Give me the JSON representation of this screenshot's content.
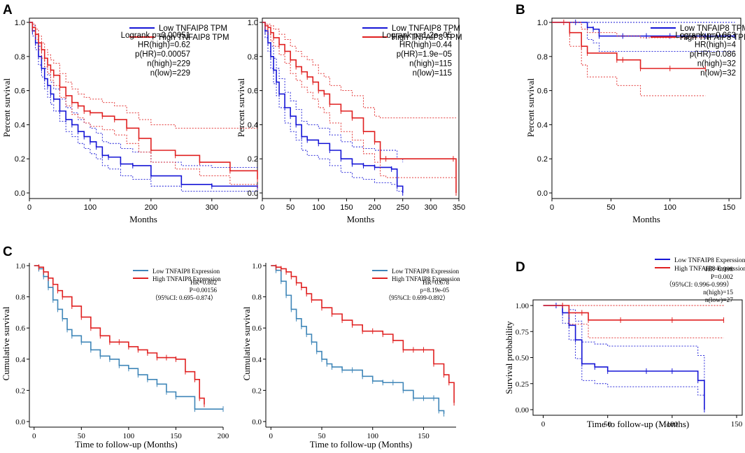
{
  "chart_data": [
    {
      "id": "A1",
      "panel_letter": "A",
      "type": "line",
      "style": "gepia",
      "xlabel": "Months",
      "ylabel": "Percent survival",
      "xlim": [
        0,
        375
      ],
      "ylim": [
        0,
        1.0
      ],
      "xticks": [
        0,
        100,
        200,
        300
      ],
      "yticks": [
        0.0,
        0.2,
        0.4,
        0.6,
        0.8,
        1.0
      ],
      "legend": [
        "Low TNFAIP8 TPM",
        "High TNFAIP8 TPM"
      ],
      "stats": [
        "Logrank p=0.00051",
        "HR(high)=0.62",
        "p(HR)=0.00057",
        "n(high)=229",
        "n(low)=229"
      ],
      "series": [
        {
          "name": "Low TNFAIP8 TPM",
          "color": "#1515d6",
          "x": [
            0,
            5,
            10,
            15,
            20,
            25,
            30,
            35,
            40,
            50,
            60,
            70,
            80,
            90,
            100,
            110,
            120,
            130,
            150,
            170,
            200,
            250,
            300,
            375
          ],
          "y": [
            1.0,
            0.95,
            0.88,
            0.8,
            0.73,
            0.67,
            0.63,
            0.58,
            0.55,
            0.48,
            0.43,
            0.4,
            0.36,
            0.33,
            0.3,
            0.27,
            0.22,
            0.21,
            0.17,
            0.16,
            0.1,
            0.05,
            0.04,
            0.03
          ],
          "ci_low": [
            1.0,
            0.92,
            0.84,
            0.75,
            0.68,
            0.61,
            0.56,
            0.52,
            0.48,
            0.42,
            0.36,
            0.33,
            0.29,
            0.26,
            0.23,
            0.2,
            0.16,
            0.14,
            0.1,
            0.08,
            0.04,
            0.01,
            0.01,
            0.01
          ],
          "ci_high": [
            1.0,
            0.98,
            0.93,
            0.86,
            0.79,
            0.73,
            0.69,
            0.65,
            0.61,
            0.55,
            0.5,
            0.47,
            0.43,
            0.41,
            0.38,
            0.35,
            0.3,
            0.29,
            0.26,
            0.24,
            0.18,
            0.16,
            0.15,
            0.15
          ]
        },
        {
          "name": "High TNFAIP8 TPM",
          "color": "#e02020",
          "x": [
            0,
            5,
            10,
            15,
            20,
            25,
            30,
            35,
            40,
            50,
            60,
            70,
            80,
            90,
            100,
            120,
            140,
            160,
            180,
            200,
            240,
            280,
            330,
            375
          ],
          "y": [
            1.0,
            0.97,
            0.93,
            0.88,
            0.84,
            0.79,
            0.75,
            0.72,
            0.69,
            0.62,
            0.57,
            0.53,
            0.51,
            0.48,
            0.47,
            0.45,
            0.43,
            0.38,
            0.32,
            0.25,
            0.22,
            0.18,
            0.13,
            0.08
          ],
          "ci_low": [
            1.0,
            0.95,
            0.9,
            0.84,
            0.79,
            0.74,
            0.7,
            0.66,
            0.63,
            0.56,
            0.51,
            0.46,
            0.44,
            0.41,
            0.39,
            0.37,
            0.34,
            0.29,
            0.24,
            0.18,
            0.14,
            0.1,
            0.05,
            0.02
          ],
          "ci_high": [
            1.0,
            0.99,
            0.96,
            0.92,
            0.88,
            0.84,
            0.81,
            0.78,
            0.76,
            0.7,
            0.65,
            0.61,
            0.58,
            0.56,
            0.55,
            0.53,
            0.51,
            0.47,
            0.43,
            0.4,
            0.38,
            0.38,
            0.38,
            0.38
          ]
        }
      ]
    },
    {
      "id": "A2",
      "type": "line",
      "style": "gepia",
      "xlabel": "Months",
      "ylabel": "Percent survival",
      "xlim": [
        0,
        350
      ],
      "ylim": [
        0,
        1.0
      ],
      "xticks": [
        0,
        50,
        100,
        150,
        200,
        250,
        300,
        350
      ],
      "yticks": [
        0.0,
        0.2,
        0.4,
        0.6,
        0.8,
        1.0
      ],
      "legend": [
        "Low TNFAIP8 TPM",
        "High TNFAIP8 TPM"
      ],
      "stats": [
        "Logrank p=1.2e−05",
        "HR(high)=0.44",
        "p(HR)=1.9e−05",
        "n(high)=115",
        "n(low)=115"
      ],
      "series": [
        {
          "name": "Low TNFAIP8 TPM",
          "color": "#1515d6",
          "x": [
            0,
            5,
            10,
            15,
            20,
            25,
            30,
            40,
            50,
            60,
            70,
            80,
            100,
            120,
            140,
            160,
            180,
            200,
            230,
            240,
            250
          ],
          "y": [
            1.0,
            0.95,
            0.88,
            0.8,
            0.72,
            0.65,
            0.58,
            0.5,
            0.45,
            0.4,
            0.33,
            0.31,
            0.29,
            0.25,
            0.2,
            0.17,
            0.16,
            0.15,
            0.14,
            0.04,
            0.0
          ],
          "ci_low": [
            1.0,
            0.91,
            0.83,
            0.73,
            0.64,
            0.57,
            0.5,
            0.41,
            0.36,
            0.31,
            0.25,
            0.22,
            0.2,
            0.16,
            0.12,
            0.09,
            0.08,
            0.06,
            0.05,
            0.01,
            0.0
          ],
          "ci_high": [
            1.0,
            0.98,
            0.93,
            0.86,
            0.79,
            0.73,
            0.67,
            0.59,
            0.54,
            0.49,
            0.42,
            0.4,
            0.38,
            0.34,
            0.3,
            0.27,
            0.26,
            0.25,
            0.25,
            0.2,
            0.18
          ]
        },
        {
          "name": "High TNFAIP8 TPM",
          "color": "#e02020",
          "x": [
            0,
            5,
            10,
            15,
            20,
            30,
            40,
            50,
            60,
            70,
            80,
            90,
            100,
            110,
            120,
            140,
            160,
            180,
            200,
            210,
            220,
            340,
            345
          ],
          "y": [
            1.0,
            0.98,
            0.97,
            0.94,
            0.91,
            0.87,
            0.83,
            0.78,
            0.74,
            0.71,
            0.68,
            0.65,
            0.6,
            0.58,
            0.52,
            0.48,
            0.44,
            0.36,
            0.3,
            0.2,
            0.2,
            0.2,
            0.0
          ],
          "ci_low": [
            1.0,
            0.96,
            0.93,
            0.89,
            0.86,
            0.81,
            0.76,
            0.7,
            0.66,
            0.62,
            0.59,
            0.55,
            0.5,
            0.47,
            0.41,
            0.36,
            0.31,
            0.23,
            0.18,
            0.1,
            0.09,
            0.09,
            0.0
          ],
          "ci_high": [
            1.0,
            0.99,
            0.99,
            0.98,
            0.96,
            0.93,
            0.9,
            0.86,
            0.83,
            0.8,
            0.78,
            0.75,
            0.7,
            0.68,
            0.63,
            0.6,
            0.57,
            0.5,
            0.45,
            0.44,
            0.44,
            0.44,
            0.44
          ]
        }
      ]
    },
    {
      "id": "B",
      "panel_letter": "B",
      "type": "line",
      "style": "gepia",
      "xlabel": "Months",
      "ylabel": "Percent survival",
      "xlim": [
        0,
        160
      ],
      "ylim": [
        0,
        1.0
      ],
      "xticks": [
        0,
        50,
        100,
        150
      ],
      "yticks": [
        0.0,
        0.2,
        0.4,
        0.6,
        0.8,
        1.0
      ],
      "legend": [
        "Low TNFAIP8 TPM",
        "High TNFAIP8 TPM"
      ],
      "stats": [
        "Logrank p=0.063",
        "HR(high)=4",
        "p(HR)=0.086",
        "n(high)=32",
        "n(low)=32"
      ],
      "series": [
        {
          "name": "Low TNFAIP8 TPM",
          "color": "#1515d6",
          "x": [
            0,
            20,
            30,
            35,
            40,
            60,
            80,
            100,
            130,
            155
          ],
          "y": [
            1.0,
            1.0,
            0.97,
            0.96,
            0.92,
            0.92,
            0.92,
            0.92,
            0.92,
            0.92
          ],
          "ci_low": [
            1.0,
            1.0,
            0.9,
            0.88,
            0.83,
            0.83,
            0.83,
            0.83,
            0.83,
            0.83
          ],
          "ci_high": [
            1.0,
            1.0,
            1.0,
            1.0,
            1.0,
            1.0,
            1.0,
            1.0,
            1.0,
            1.0
          ]
        },
        {
          "name": "High TNFAIP8 TPM",
          "color": "#e02020",
          "x": [
            0,
            10,
            15,
            25,
            30,
            55,
            60,
            75,
            100,
            130
          ],
          "y": [
            1.0,
            1.0,
            0.94,
            0.86,
            0.82,
            0.78,
            0.78,
            0.73,
            0.73,
            0.73
          ],
          "ci_low": [
            1.0,
            1.0,
            0.86,
            0.75,
            0.68,
            0.63,
            0.63,
            0.57,
            0.57,
            0.57
          ],
          "ci_high": [
            1.0,
            1.0,
            1.0,
            0.96,
            0.94,
            0.92,
            0.92,
            0.91,
            0.91,
            0.91
          ]
        }
      ]
    },
    {
      "id": "C1",
      "panel_letter": "C",
      "type": "line",
      "style": "clinical",
      "xlabel": "Time to follow-up (Months)",
      "ylabel": "Cumulative survival",
      "xlim": [
        -5,
        200
      ],
      "ylim": [
        0,
        1.0
      ],
      "xticks": [
        0,
        50,
        100,
        150,
        200
      ],
      "yticks": [
        0.0,
        0.2,
        0.4,
        0.6,
        0.8,
        1.0
      ],
      "legend": [
        "Low TNFAIP8 Expression",
        "High TNFAIP8 Expression"
      ],
      "stats": [
        "HR=0.802",
        "P=0.00156",
        "（95%CI: 0.695–0.874）"
      ],
      "series": [
        {
          "name": "Low TNFAIP8 Expression",
          "color": "#3f86b8",
          "x": [
            0,
            5,
            10,
            15,
            20,
            25,
            30,
            35,
            40,
            50,
            60,
            70,
            80,
            90,
            100,
            110,
            120,
            130,
            140,
            150,
            170,
            200
          ],
          "y": [
            1.0,
            0.98,
            0.93,
            0.86,
            0.78,
            0.72,
            0.66,
            0.59,
            0.55,
            0.51,
            0.46,
            0.42,
            0.4,
            0.36,
            0.34,
            0.3,
            0.27,
            0.24,
            0.19,
            0.16,
            0.08,
            0.08
          ]
        },
        {
          "name": "High TNFAIP8 Expression",
          "color": "#e02020",
          "x": [
            0,
            5,
            10,
            15,
            20,
            25,
            30,
            40,
            50,
            60,
            70,
            80,
            90,
            100,
            110,
            120,
            130,
            140,
            150,
            160,
            170,
            175,
            180
          ],
          "y": [
            1.0,
            0.99,
            0.96,
            0.92,
            0.88,
            0.84,
            0.8,
            0.74,
            0.67,
            0.6,
            0.55,
            0.51,
            0.51,
            0.48,
            0.46,
            0.44,
            0.41,
            0.41,
            0.4,
            0.32,
            0.27,
            0.15,
            0.11
          ]
        }
      ]
    },
    {
      "id": "C2",
      "type": "line",
      "style": "clinical",
      "xlabel": "Time to follow-up (Months)",
      "ylabel": "Cumulative survival",
      "xlim": [
        -5,
        182
      ],
      "ylim": [
        0,
        1.0
      ],
      "xticks": [
        0,
        50,
        100,
        150
      ],
      "yticks": [
        0.0,
        0.2,
        0.4,
        0.6,
        0.8,
        1.0
      ],
      "legend": [
        "Low TNFAIP8 Expression",
        "High TNFAIP8 Expression"
      ],
      "stats": [
        "HR=0.678",
        "p=8.19e-05",
        "（95%CI: 0.699-0.892）"
      ],
      "series": [
        {
          "name": "Low TNFAIP8 Expression",
          "color": "#3f86b8",
          "x": [
            0,
            5,
            10,
            15,
            20,
            25,
            30,
            35,
            40,
            45,
            50,
            55,
            60,
            70,
            80,
            90,
            100,
            110,
            120,
            130,
            140,
            150,
            160,
            165,
            170
          ],
          "y": [
            1.0,
            0.97,
            0.9,
            0.81,
            0.72,
            0.66,
            0.61,
            0.56,
            0.51,
            0.45,
            0.4,
            0.37,
            0.35,
            0.33,
            0.33,
            0.29,
            0.26,
            0.25,
            0.25,
            0.2,
            0.15,
            0.15,
            0.15,
            0.07,
            0.05
          ]
        },
        {
          "name": "High TNFAIP8 Expression",
          "color": "#e02020",
          "x": [
            0,
            5,
            10,
            15,
            20,
            25,
            30,
            35,
            40,
            50,
            60,
            70,
            80,
            90,
            100,
            110,
            120,
            130,
            140,
            150,
            160,
            170,
            175,
            180
          ],
          "y": [
            1.0,
            0.99,
            0.98,
            0.96,
            0.93,
            0.89,
            0.86,
            0.82,
            0.78,
            0.73,
            0.69,
            0.65,
            0.62,
            0.58,
            0.58,
            0.56,
            0.52,
            0.46,
            0.46,
            0.46,
            0.37,
            0.3,
            0.25,
            0.12
          ]
        }
      ]
    },
    {
      "id": "D",
      "panel_letter": "D",
      "type": "line",
      "style": "clinical_d",
      "xlabel": "Time to follow-up (Months)",
      "ylabel": "Survival probability",
      "xlim": [
        -3,
        150
      ],
      "ylim": [
        0,
        1.0
      ],
      "xticks": [
        0,
        50,
        100,
        150
      ],
      "yticks": [
        0.0,
        0.25,
        0.5,
        0.75,
        1.0
      ],
      "ytick_labels": [
        "0.00",
        "0.25",
        "0.50",
        "0.75",
        "1.00"
      ],
      "legend": [
        "Low  TNFAIP8 Experssion",
        "High  TNFAIP8 Experssion"
      ],
      "stats": [
        "HR=0.998",
        "P=0.002",
        "（95%CI: 0.996-0.999）",
        "n(high)=15",
        "n(low)=27"
      ],
      "series": [
        {
          "name": "Low TNFAIP8 Experssion",
          "color": "#1515d6",
          "x": [
            0,
            10,
            15,
            20,
            25,
            30,
            40,
            50,
            80,
            100,
            120,
            125
          ],
          "y": [
            1.0,
            1.0,
            0.93,
            0.81,
            0.67,
            0.44,
            0.41,
            0.37,
            0.37,
            0.37,
            0.28,
            0.0
          ],
          "ci_low": [
            1.0,
            1.0,
            0.83,
            0.67,
            0.49,
            0.28,
            0.25,
            0.22,
            0.22,
            0.22,
            0.14,
            0.0
          ],
          "ci_high": [
            1.0,
            1.0,
            1.0,
            0.96,
            0.85,
            0.65,
            0.63,
            0.61,
            0.61,
            0.61,
            0.52,
            0.12
          ]
        },
        {
          "name": "High TNFAIP8 Experssion",
          "color": "#e02020",
          "x": [
            0,
            15,
            20,
            30,
            35,
            60,
            100,
            140
          ],
          "y": [
            1.0,
            1.0,
            0.93,
            0.93,
            0.86,
            0.86,
            0.86,
            0.86
          ],
          "ci_low": [
            1.0,
            1.0,
            0.82,
            0.82,
            0.69,
            0.69,
            0.69,
            0.69
          ],
          "ci_high": [
            1.0,
            1.0,
            1.0,
            1.0,
            1.0,
            1.0,
            1.0,
            1.0
          ]
        }
      ]
    }
  ]
}
